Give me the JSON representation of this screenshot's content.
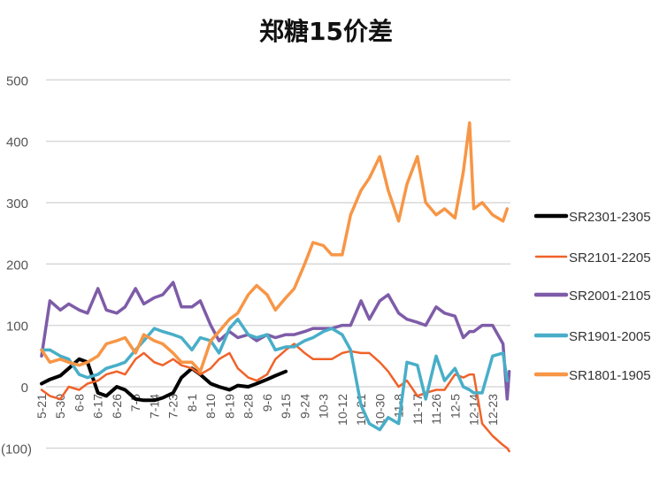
{
  "chart_data": {
    "type": "line",
    "title": "郑糖15价差",
    "xlabel": "",
    "ylabel": "",
    "ylim": [
      -100,
      500
    ],
    "yticks": [
      500,
      400,
      300,
      200,
      100,
      0,
      -100
    ],
    "ytick_labels": [
      "500",
      "400",
      "300",
      "200",
      "100",
      "0",
      "(100)"
    ],
    "negative_label_color": "#c00000",
    "xtick_labels": [
      "5-21",
      "5-30",
      "6-8",
      "6-17",
      "6-26",
      "7-5",
      "7-14",
      "7-23",
      "8-1",
      "8-10",
      "8-19",
      "8-28",
      "9-6",
      "9-15",
      "9-24",
      "10-3",
      "10-12",
      "10-21",
      "10-30",
      "11-8",
      "11-17",
      "11-26",
      "12-5",
      "12-14",
      "12-23"
    ],
    "grid": true,
    "legend_position": "right",
    "x": [
      "5-21",
      "5-25",
      "5-30",
      "6-3",
      "6-8",
      "6-12",
      "6-17",
      "6-21",
      "6-26",
      "6-30",
      "7-5",
      "7-9",
      "7-14",
      "7-18",
      "7-23",
      "7-27",
      "8-1",
      "8-5",
      "8-10",
      "8-14",
      "8-19",
      "8-23",
      "8-28",
      "9-1",
      "9-6",
      "9-10",
      "9-15",
      "9-19",
      "9-24",
      "9-28",
      "10-3",
      "10-7",
      "10-12",
      "10-16",
      "10-21",
      "10-25",
      "10-30",
      "11-3",
      "11-8",
      "11-12",
      "11-17",
      "11-21",
      "11-26",
      "11-30",
      "12-5",
      "12-9",
      "12-12",
      "12-14",
      "12-18",
      "12-23",
      "12-28",
      "12-30",
      "12-31"
    ],
    "series": [
      {
        "name": "SR2301-2305",
        "color": "#000000",
        "values": [
          5,
          12,
          18,
          30,
          45,
          40,
          -10,
          -15,
          0,
          -5,
          -20,
          -22,
          -22,
          -18,
          -10,
          15,
          30,
          20,
          5,
          0,
          -5,
          2,
          0,
          5,
          12,
          18,
          25,
          null,
          null,
          null,
          null,
          null,
          null,
          null,
          null,
          null,
          null,
          null,
          null,
          null,
          null,
          null,
          null,
          null,
          null,
          null,
          null,
          null,
          null,
          null,
          null,
          null,
          null
        ]
      },
      {
        "name": "SR2101-2205",
        "color": "#f0622a",
        "values": [
          -5,
          -15,
          -20,
          0,
          -5,
          5,
          10,
          20,
          25,
          20,
          45,
          55,
          40,
          35,
          45,
          35,
          30,
          20,
          30,
          45,
          55,
          30,
          15,
          10,
          20,
          45,
          60,
          70,
          55,
          45,
          45,
          45,
          55,
          58,
          55,
          55,
          40,
          25,
          0,
          10,
          -15,
          -10,
          -5,
          -5,
          20,
          15,
          20,
          20,
          -60,
          -80,
          -95,
          -100,
          -105
        ]
      },
      {
        "name": "SR2001-2105",
        "color": "#7e5ca8",
        "values": [
          50,
          140,
          125,
          135,
          125,
          120,
          160,
          125,
          120,
          130,
          160,
          135,
          145,
          150,
          170,
          130,
          130,
          140,
          100,
          75,
          90,
          80,
          85,
          75,
          85,
          80,
          85,
          85,
          90,
          95,
          95,
          95,
          100,
          100,
          140,
          110,
          140,
          150,
          120,
          110,
          105,
          100,
          130,
          120,
          115,
          80,
          90,
          90,
          100,
          100,
          70,
          -20,
          25
        ]
      },
      {
        "name": "SR1901-2005",
        "color": "#48aec8",
        "values": [
          60,
          60,
          50,
          45,
          20,
          15,
          20,
          30,
          35,
          40,
          60,
          75,
          95,
          90,
          85,
          80,
          60,
          80,
          75,
          55,
          95,
          110,
          85,
          80,
          85,
          60,
          65,
          65,
          75,
          80,
          90,
          95,
          85,
          60,
          -30,
          -60,
          -70,
          -50,
          -60,
          40,
          35,
          -20,
          50,
          10,
          30,
          0,
          -5,
          -10,
          -10,
          50,
          55,
          10,
          null
        ]
      },
      {
        "name": "SR1801-1905",
        "color": "#f79646",
        "values": [
          60,
          40,
          45,
          40,
          35,
          40,
          50,
          70,
          75,
          80,
          55,
          85,
          75,
          70,
          55,
          40,
          40,
          25,
          75,
          90,
          110,
          120,
          150,
          165,
          150,
          125,
          145,
          160,
          200,
          235,
          230,
          215,
          215,
          280,
          320,
          340,
          375,
          320,
          270,
          330,
          375,
          300,
          280,
          290,
          275,
          350,
          430,
          290,
          300,
          280,
          270,
          290,
          null
        ]
      }
    ]
  }
}
